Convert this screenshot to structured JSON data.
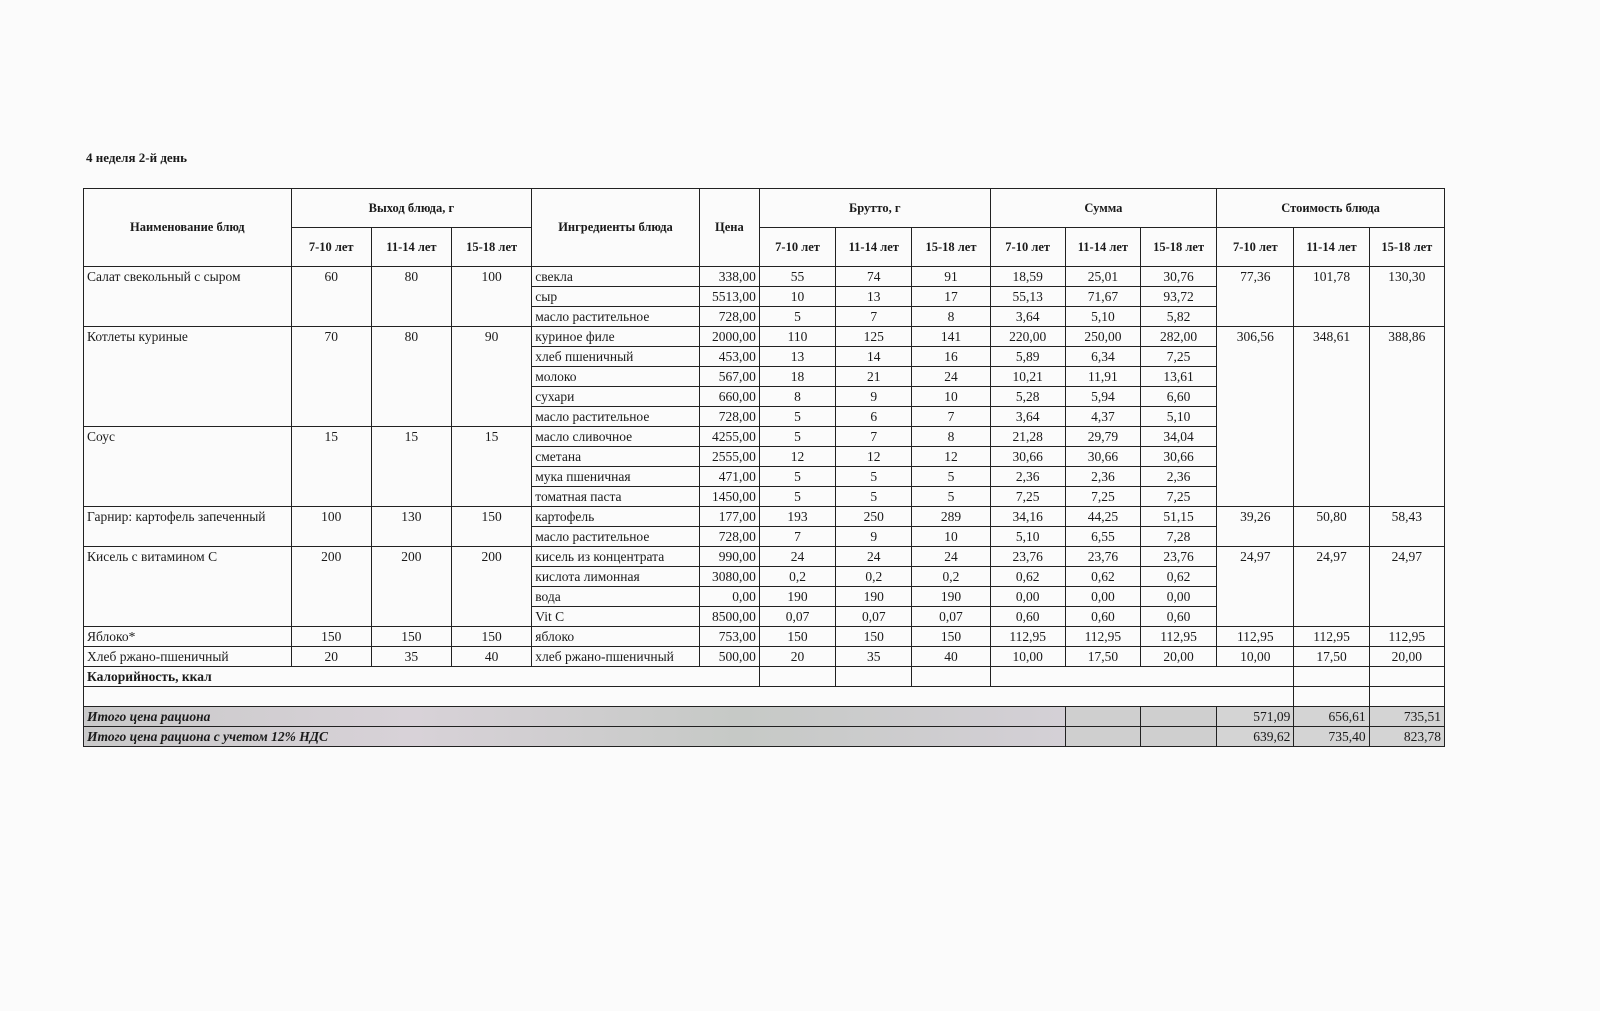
{
  "title": "4 неделя 2-й день",
  "headers": {
    "dish_name": "Наименование блюд",
    "output": "Выход блюда, г",
    "ingredients": "Ингредиенты блюда",
    "price": "Цена",
    "brutto": "Брутто, г",
    "sum": "Сумма",
    "cost": "Стоимость блюда",
    "ages": [
      "7-10 лет",
      "11-14 лет",
      "15-18 лет"
    ]
  },
  "dishes": [
    {
      "name": "Салат свекольный с сыром",
      "output": [
        "60",
        "80",
        "100"
      ],
      "cost": [
        "77,36",
        "101,78",
        "130,30"
      ],
      "ingredients": [
        {
          "name": "свекла",
          "price": "338,00",
          "brutto": [
            "55",
            "74",
            "91"
          ],
          "sum": [
            "18,59",
            "25,01",
            "30,76"
          ]
        },
        {
          "name": "сыр",
          "price": "5513,00",
          "brutto": [
            "10",
            "13",
            "17"
          ],
          "sum": [
            "55,13",
            "71,67",
            "93,72"
          ]
        },
        {
          "name": "масло растительное",
          "price": "728,00",
          "brutto": [
            "5",
            "7",
            "8"
          ],
          "sum": [
            "3,64",
            "5,10",
            "5,82"
          ]
        }
      ]
    },
    {
      "name": "Котлеты куриные",
      "output": [
        "70",
        "80",
        "90"
      ],
      "cost": [
        "306,56",
        "348,61",
        "388,86"
      ],
      "ingredients": [
        {
          "name": "куриное филе",
          "price": "2000,00",
          "brutto": [
            "110",
            "125",
            "141"
          ],
          "sum": [
            "220,00",
            "250,00",
            "282,00"
          ]
        },
        {
          "name": "хлеб пшеничный",
          "price": "453,00",
          "brutto": [
            "13",
            "14",
            "16"
          ],
          "sum": [
            "5,89",
            "6,34",
            "7,25"
          ]
        },
        {
          "name": "молоко",
          "price": "567,00",
          "brutto": [
            "18",
            "21",
            "24"
          ],
          "sum": [
            "10,21",
            "11,91",
            "13,61"
          ]
        },
        {
          "name": "сухари",
          "price": "660,00",
          "brutto": [
            "8",
            "9",
            "10"
          ],
          "sum": [
            "5,28",
            "5,94",
            "6,60"
          ]
        },
        {
          "name": "масло растительное",
          "price": "728,00",
          "brutto": [
            "5",
            "6",
            "7"
          ],
          "sum": [
            "3,64",
            "4,37",
            "5,10"
          ]
        }
      ]
    },
    {
      "name": "Соус",
      "output": [
        "15",
        "15",
        "15"
      ],
      "cost": null,
      "ingredients": [
        {
          "name": "масло сливочное",
          "price": "4255,00",
          "brutto": [
            "5",
            "7",
            "8"
          ],
          "sum": [
            "21,28",
            "29,79",
            "34,04"
          ]
        },
        {
          "name": "сметана",
          "price": "2555,00",
          "brutto": [
            "12",
            "12",
            "12"
          ],
          "sum": [
            "30,66",
            "30,66",
            "30,66"
          ]
        },
        {
          "name": "мука пшеничная",
          "price": "471,00",
          "brutto": [
            "5",
            "5",
            "5"
          ],
          "sum": [
            "2,36",
            "2,36",
            "2,36"
          ]
        },
        {
          "name": "томатная паста",
          "price": "1450,00",
          "brutto": [
            "5",
            "5",
            "5"
          ],
          "sum": [
            "7,25",
            "7,25",
            "7,25"
          ]
        }
      ]
    },
    {
      "name": "Гарнир:  картофель запеченный",
      "output": [
        "100",
        "130",
        "150"
      ],
      "cost": [
        "39,26",
        "50,80",
        "58,43"
      ],
      "ingredients": [
        {
          "name": "картофель",
          "price": "177,00",
          "brutto": [
            "193",
            "250",
            "289"
          ],
          "sum": [
            "34,16",
            "44,25",
            "51,15"
          ]
        },
        {
          "name": "масло растительное",
          "price": "728,00",
          "brutto": [
            "7",
            "9",
            "10"
          ],
          "sum": [
            "5,10",
            "6,55",
            "7,28"
          ]
        }
      ]
    },
    {
      "name": "Кисель с витамином С",
      "output": [
        "200",
        "200",
        "200"
      ],
      "cost": [
        "24,97",
        "24,97",
        "24,97"
      ],
      "ingredients": [
        {
          "name": "кисель из концентрата",
          "price": "990,00",
          "brutto": [
            "24",
            "24",
            "24"
          ],
          "sum": [
            "23,76",
            "23,76",
            "23,76"
          ]
        },
        {
          "name": "кислота лимонная",
          "price": "3080,00",
          "brutto": [
            "0,2",
            "0,2",
            "0,2"
          ],
          "sum": [
            "0,62",
            "0,62",
            "0,62"
          ]
        },
        {
          "name": "вода",
          "price": "0,00",
          "brutto": [
            "190",
            "190",
            "190"
          ],
          "sum": [
            "0,00",
            "0,00",
            "0,00"
          ]
        },
        {
          "name": "Vit C",
          "price": "8500,00",
          "brutto": [
            "0,07",
            "0,07",
            "0,07"
          ],
          "sum": [
            "0,60",
            "0,60",
            "0,60"
          ]
        }
      ]
    },
    {
      "name": "Яблоко*",
      "output": [
        "150",
        "150",
        "150"
      ],
      "cost": [
        "112,95",
        "112,95",
        "112,95"
      ],
      "ingredients": [
        {
          "name": "яблоко",
          "price": "753,00",
          "brutto": [
            "150",
            "150",
            "150"
          ],
          "sum": [
            "112,95",
            "112,95",
            "112,95"
          ]
        }
      ]
    },
    {
      "name": "Хлеб ржано-пшеничный",
      "output": [
        "20",
        "35",
        "40"
      ],
      "cost": [
        "10,00",
        "17,50",
        "20,00"
      ],
      "ingredients": [
        {
          "name": "хлеб ржано-пшеничный",
          "price": "500,00",
          "brutto": [
            "20",
            "35",
            "40"
          ],
          "sum": [
            "10,00",
            "17,50",
            "20,00"
          ]
        }
      ]
    }
  ],
  "calories_label": "Калорийность, ккал",
  "totals": [
    {
      "label": "Итого цена рациона",
      "values": [
        "571,09",
        "656,61",
        "735,51"
      ]
    },
    {
      "label": "Итого цена рациона с учетом 12% НДС",
      "values": [
        "639,62",
        "735,40",
        "823,78"
      ]
    }
  ]
}
